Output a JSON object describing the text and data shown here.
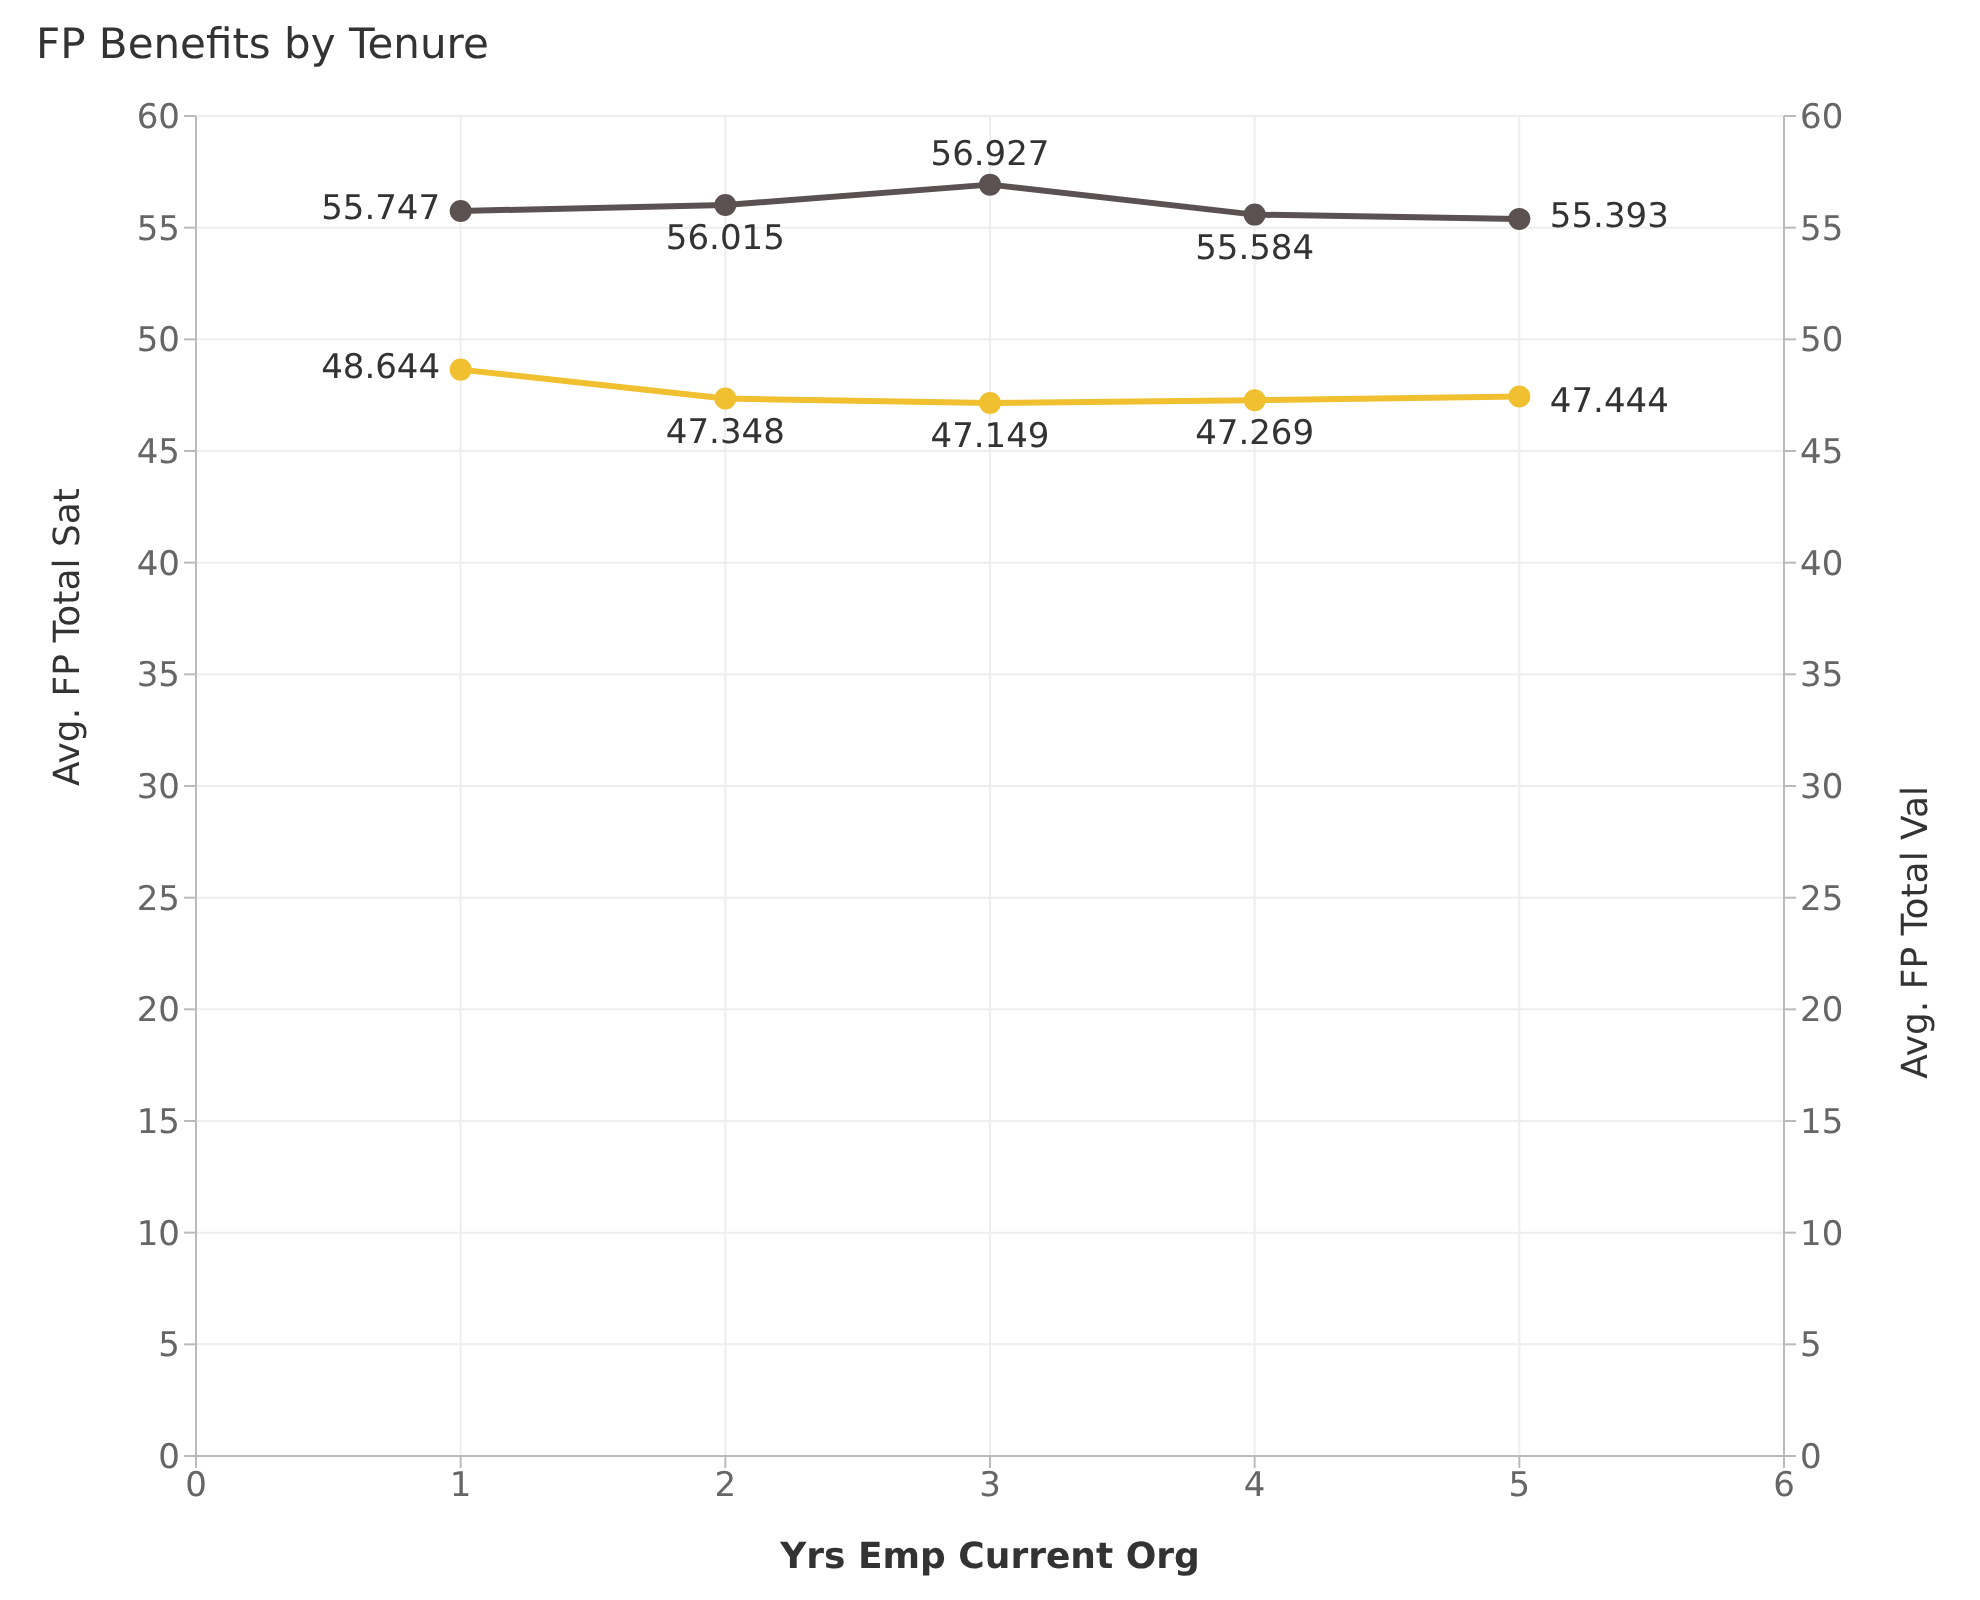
{
  "chart_data": {
    "type": "line",
    "title": "FP Benefits by Tenure",
    "xlabel": "Yrs Emp Current Org",
    "ylabel": "Avg. FP Total Sat",
    "y2label": "Avg. FP Total Val",
    "x": [
      1,
      2,
      3,
      4,
      5
    ],
    "series": [
      {
        "color": "#5b5152",
        "values": [
          55.747,
          56.015,
          56.927,
          55.584,
          55.393
        ]
      },
      {
        "color": "#f0c030",
        "values": [
          48.644,
          47.348,
          47.149,
          47.269,
          47.444
        ]
      }
    ],
    "xlim": [
      0,
      6
    ],
    "xticks": [
      0,
      1,
      2,
      3,
      4,
      5,
      6
    ],
    "ylim": [
      0,
      60
    ],
    "yticks": [
      0,
      5,
      10,
      15,
      20,
      25,
      30,
      35,
      40,
      45,
      50,
      55,
      60
    ],
    "y2lim": [
      0,
      60
    ],
    "y2ticks": [
      0,
      5,
      10,
      15,
      20,
      25,
      30,
      35,
      40,
      45,
      50,
      55,
      60
    ],
    "grid": true,
    "data_labels": true,
    "marker": "circle",
    "line_style": "solid"
  }
}
